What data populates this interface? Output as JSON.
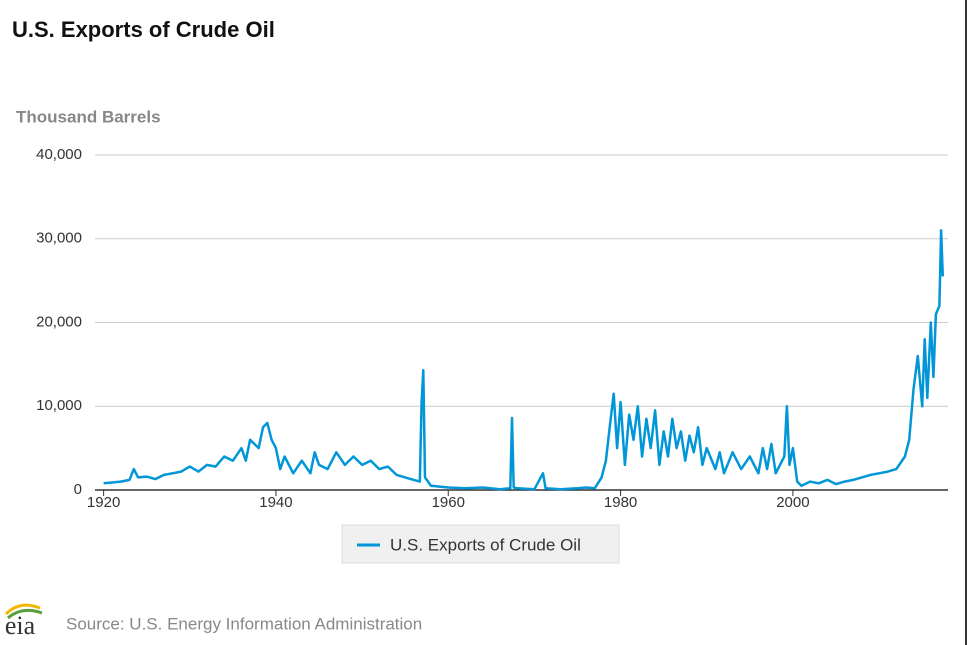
{
  "chart_data": {
    "type": "line",
    "title": "U.S. Exports of Crude Oil",
    "ylabel": "Thousand Barrels",
    "source": "Source: U.S. Energy Information Administration",
    "logo": "eia",
    "xlim": [
      1919,
      2018
    ],
    "xticks": [
      1920,
      1940,
      1960,
      1980,
      2000
    ],
    "ylim": [
      0,
      40000
    ],
    "yticks": [
      0,
      {
        "value": 10000,
        "label": "10,000"
      },
      {
        "value": 20000,
        "label": "20,000"
      },
      {
        "value": 30000,
        "label": "30,000"
      },
      {
        "value": 40000,
        "label": "40,000"
      }
    ],
    "grid": true,
    "series": [
      {
        "name": "U.S. Exports of Crude Oil",
        "color": "#0096d7",
        "x": [
          1920,
          1921,
          1922,
          1923,
          1923.5,
          1924,
          1925,
          1926,
          1927,
          1928,
          1929,
          1930,
          1931,
          1932,
          1933,
          1934,
          1935,
          1936,
          1936.5,
          1937,
          1938,
          1938.5,
          1939,
          1939.5,
          1940,
          1940.5,
          1941,
          1942,
          1943,
          1944,
          1944.5,
          1945,
          1946,
          1947,
          1948,
          1949,
          1950,
          1951,
          1952,
          1953,
          1954,
          1955,
          1956,
          1956.7,
          1956.9,
          1957.1,
          1957.3,
          1958,
          1960,
          1962,
          1964,
          1966,
          1967.2,
          1967.4,
          1967.6,
          1968,
          1970,
          1971,
          1971.3,
          1973,
          1975,
          1976,
          1977,
          1977.8,
          1978.3,
          1978.8,
          1979.2,
          1979.6,
          1980,
          1980.5,
          1981,
          1981.5,
          1982,
          1982.5,
          1983,
          1983.5,
          1984,
          1984.5,
          1985,
          1985.5,
          1986,
          1986.5,
          1987,
          1987.5,
          1988,
          1988.5,
          1989,
          1989.5,
          1990,
          1991,
          1991.5,
          1992,
          1993,
          1994,
          1995,
          1996,
          1996.5,
          1997,
          1997.5,
          1998,
          1999,
          1999.3,
          1999.6,
          2000,
          2000.5,
          2001,
          2002,
          2003,
          2004,
          2005,
          2006,
          2007,
          2008,
          2009,
          2010,
          2011,
          2012,
          2013,
          2013.5,
          2014,
          2014.5,
          2015,
          2015.3,
          2015.6,
          2016,
          2016.3,
          2016.6,
          2017,
          2017.2,
          2017.4
        ],
        "values": [
          800,
          900,
          1000,
          1200,
          2500,
          1500,
          1600,
          1300,
          1800,
          2000,
          2200,
          2800,
          2200,
          3000,
          2800,
          4000,
          3500,
          5000,
          3500,
          6000,
          5000,
          7500,
          8000,
          6000,
          5000,
          2500,
          4000,
          2000,
          3500,
          2000,
          4500,
          3000,
          2500,
          4500,
          3000,
          4000,
          3000,
          3500,
          2500,
          2800,
          1800,
          1500,
          1200,
          1000,
          10500,
          14300,
          1500,
          500,
          300,
          200,
          300,
          100,
          200,
          8600,
          300,
          200,
          100,
          2000,
          200,
          100,
          200,
          300,
          200,
          1500,
          3500,
          8000,
          11500,
          5000,
          10500,
          3000,
          9000,
          6000,
          10000,
          4000,
          8500,
          5000,
          9500,
          3000,
          7000,
          4000,
          8500,
          5000,
          7000,
          3500,
          6500,
          4500,
          7500,
          3000,
          5000,
          2500,
          4500,
          2000,
          4500,
          2500,
          4000,
          2000,
          5000,
          2500,
          5500,
          2000,
          4000,
          10000,
          3000,
          5000,
          1000,
          500,
          1000,
          800,
          1200,
          700,
          1000,
          1200,
          1500,
          1800,
          2000,
          2200,
          2500,
          4000,
          6000,
          12000,
          16000,
          10000,
          18000,
          11000,
          20000,
          13500,
          21000,
          22000,
          31000,
          25500
        ]
      }
    ]
  }
}
